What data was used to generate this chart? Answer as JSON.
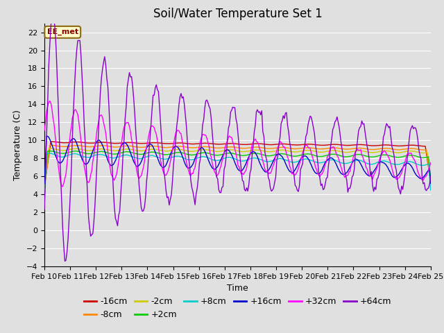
{
  "title": "Soil/Water Temperature Set 1",
  "xlabel": "Time",
  "ylabel": "Temperature (C)",
  "ylim": [
    -4,
    23
  ],
  "yticks": [
    -4,
    -2,
    0,
    2,
    4,
    6,
    8,
    10,
    12,
    14,
    16,
    18,
    20,
    22
  ],
  "x_tick_labels": [
    "Feb 10",
    "Feb 11",
    "Feb 12",
    "Feb 13",
    "Feb 14",
    "Feb 15",
    "Feb 16",
    "Feb 17",
    "Feb 18",
    "Feb 19",
    "Feb 20",
    "Feb 21",
    "Feb 22",
    "Feb 23",
    "Feb 24",
    "Feb 25"
  ],
  "annotation_text": "EE_met",
  "series_labels": [
    "-16cm",
    "-8cm",
    "-2cm",
    "+2cm",
    "+8cm",
    "+16cm",
    "+32cm",
    "+64cm"
  ],
  "series_colors": [
    "#cc0000",
    "#ff8800",
    "#cccc00",
    "#00cc00",
    "#00cccc",
    "#0000cc",
    "#ff00ff",
    "#8800cc"
  ],
  "background_color": "#e0e0e0",
  "grid_color": "#ffffff",
  "title_fontsize": 12,
  "axis_fontsize": 9,
  "tick_fontsize": 8,
  "legend_fontsize": 9,
  "linewidth": 1.0
}
